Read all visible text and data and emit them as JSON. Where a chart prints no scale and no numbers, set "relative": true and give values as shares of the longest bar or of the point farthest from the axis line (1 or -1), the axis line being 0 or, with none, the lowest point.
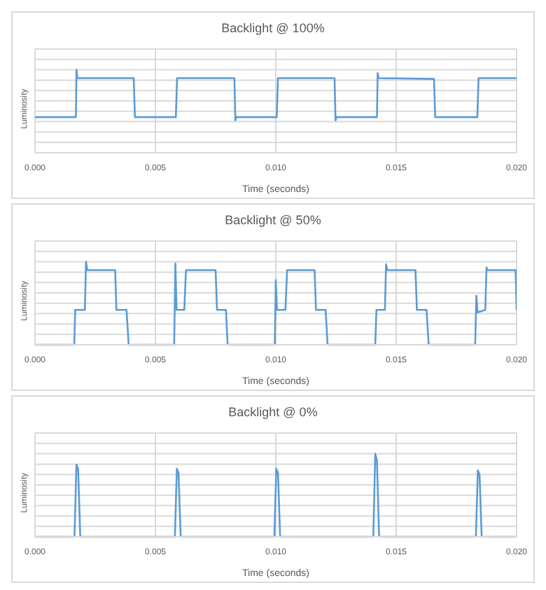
{
  "chart_data": [
    {
      "type": "line",
      "title": "Backlight @ 100%",
      "xlabel": "Time (seconds)",
      "ylabel": "Luminosity",
      "relative": true,
      "grid": true,
      "color": "#5b9bd5",
      "xlim": [
        0,
        0.02
      ],
      "xticks": [
        {
          "value": 0,
          "label": "0.000"
        },
        {
          "value": 0.005,
          "label": "0.005"
        },
        {
          "value": 0.01,
          "label": "0.010"
        },
        {
          "value": 0.015,
          "label": "0.015"
        },
        {
          "value": 0.02,
          "label": "0.020"
        }
      ],
      "x": [
        0,
        0.0017,
        0.00172,
        0.00176,
        0.0041,
        0.00415,
        0.00585,
        0.0059,
        0.00828,
        0.00832,
        0.00836,
        0.01004,
        0.01009,
        0.01244,
        0.01248,
        0.01252,
        0.0142,
        0.01423,
        0.01427,
        0.01657,
        0.01662,
        0.01837,
        0.01842,
        0.02
      ],
      "values": [
        0.43,
        0.43,
        1.0,
        0.9,
        0.9,
        0.43,
        0.43,
        0.9,
        0.9,
        0.39,
        0.43,
        0.43,
        0.9,
        0.9,
        0.39,
        0.43,
        0.43,
        0.96,
        0.9,
        0.89,
        0.43,
        0.43,
        0.9,
        0.9
      ]
    },
    {
      "type": "line",
      "title": "Backlight @ 50%",
      "xlabel": "Time (seconds)",
      "ylabel": "Luminosity",
      "relative": true,
      "grid": true,
      "color": "#5b9bd5",
      "xlim": [
        0,
        0.02
      ],
      "xticks": [
        {
          "value": 0,
          "label": "0.000"
        },
        {
          "value": 0.005,
          "label": "0.005"
        },
        {
          "value": 0.01,
          "label": "0.010"
        },
        {
          "value": 0.015,
          "label": "0.015"
        },
        {
          "value": 0.02,
          "label": "0.020"
        }
      ],
      "x": [
        0,
        0.00163,
        0.00167,
        0.00207,
        0.00212,
        0.00217,
        0.00333,
        0.00338,
        0.0038,
        0.00389,
        0.00578,
        0.00583,
        0.00588,
        0.0062,
        0.00627,
        0.0075,
        0.00756,
        0.00793,
        0.008,
        0.00996,
        0.01,
        0.01005,
        0.0104,
        0.01047,
        0.01161,
        0.01167,
        0.01207,
        0.01215,
        0.01413,
        0.01418,
        0.01453,
        0.01458,
        0.01463,
        0.0158,
        0.01586,
        0.01626,
        0.01635,
        0.01828,
        0.01833,
        0.01838,
        0.0187,
        0.01875,
        0.0188,
        0.01996,
        0.02
      ],
      "values": [
        0,
        0,
        0.42,
        0.42,
        1.0,
        0.9,
        0.9,
        0.42,
        0.42,
        0,
        0,
        0.98,
        0.42,
        0.42,
        0.9,
        0.9,
        0.42,
        0.42,
        0,
        0,
        0.78,
        0.42,
        0.42,
        0.9,
        0.9,
        0.42,
        0.42,
        0,
        0,
        0.42,
        0.42,
        0.97,
        0.9,
        0.9,
        0.42,
        0.42,
        0,
        0,
        0.59,
        0.39,
        0.42,
        0.93,
        0.9,
        0.9,
        0.42
      ]
    },
    {
      "type": "line",
      "title": "Backlight @ 0%",
      "xlabel": "Time (seconds)",
      "ylabel": "Luminosity",
      "relative": true,
      "grid": true,
      "color": "#5b9bd5",
      "xlim": [
        0,
        0.02
      ],
      "xticks": [
        {
          "value": 0,
          "label": "0.000"
        },
        {
          "value": 0.005,
          "label": "0.005"
        },
        {
          "value": 0.01,
          "label": "0.010"
        },
        {
          "value": 0.015,
          "label": "0.015"
        },
        {
          "value": 0.02,
          "label": "0.020"
        }
      ],
      "x": [
        0,
        0.00164,
        0.00172,
        0.00179,
        0.00188,
        0.00581,
        0.00589,
        0.00596,
        0.00605,
        0.00994,
        0.01002,
        0.01009,
        0.01018,
        0.01405,
        0.01413,
        0.0142,
        0.01429,
        0.01831,
        0.01839,
        0.01846,
        0.01855,
        0.02
      ],
      "values": [
        0,
        0,
        0.87,
        0.82,
        0,
        0,
        0.82,
        0.77,
        0,
        0,
        0.82,
        0.77,
        0,
        0,
        1.0,
        0.92,
        0,
        0,
        0.8,
        0.75,
        0,
        0
      ]
    }
  ]
}
